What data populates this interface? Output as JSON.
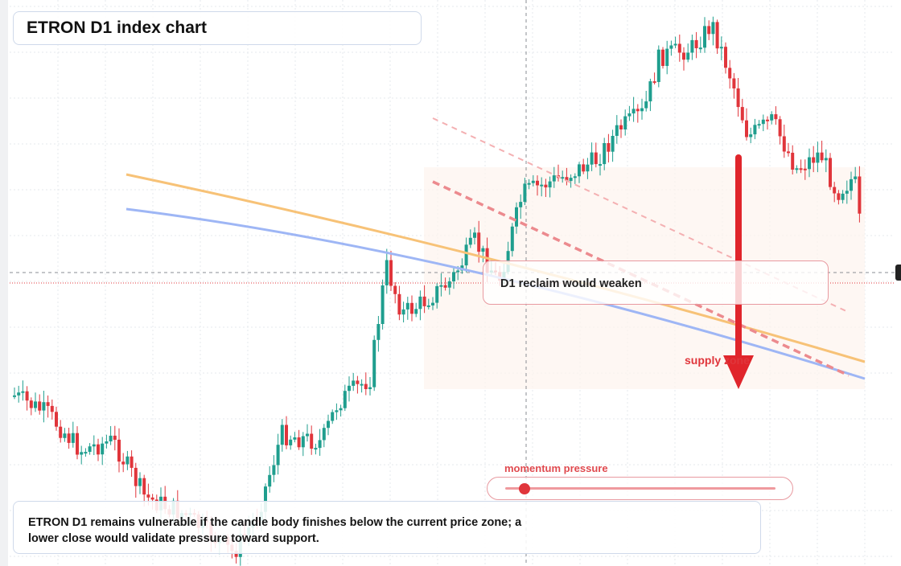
{
  "title": "ETRON D1 index chart",
  "callout": {
    "text": "D1 reclaim would weaken"
  },
  "supply_label": "supply zone",
  "momentum": {
    "label": "momentum pressure",
    "level": 0.07
  },
  "note": {
    "line1": "ETRON D1 remains vulnerable if the candle body finishes below the current price zone; a",
    "line2": "lower close would validate pressure toward support."
  },
  "colors": {
    "up": "#1f9e8e",
    "down": "#e0353b",
    "orange_line": "#f7c277",
    "blue_line": "#9eb6f5",
    "trend_dashed": "#ec8a8e",
    "arrow": "#e0252b"
  },
  "chart_data": {
    "type": "candlestick",
    "grid": true,
    "lines": [
      {
        "style": "orange-curve"
      },
      {
        "style": "blue-curve"
      },
      {
        "style": "dashed-red-channel"
      }
    ],
    "arrow_direction": "down"
  }
}
